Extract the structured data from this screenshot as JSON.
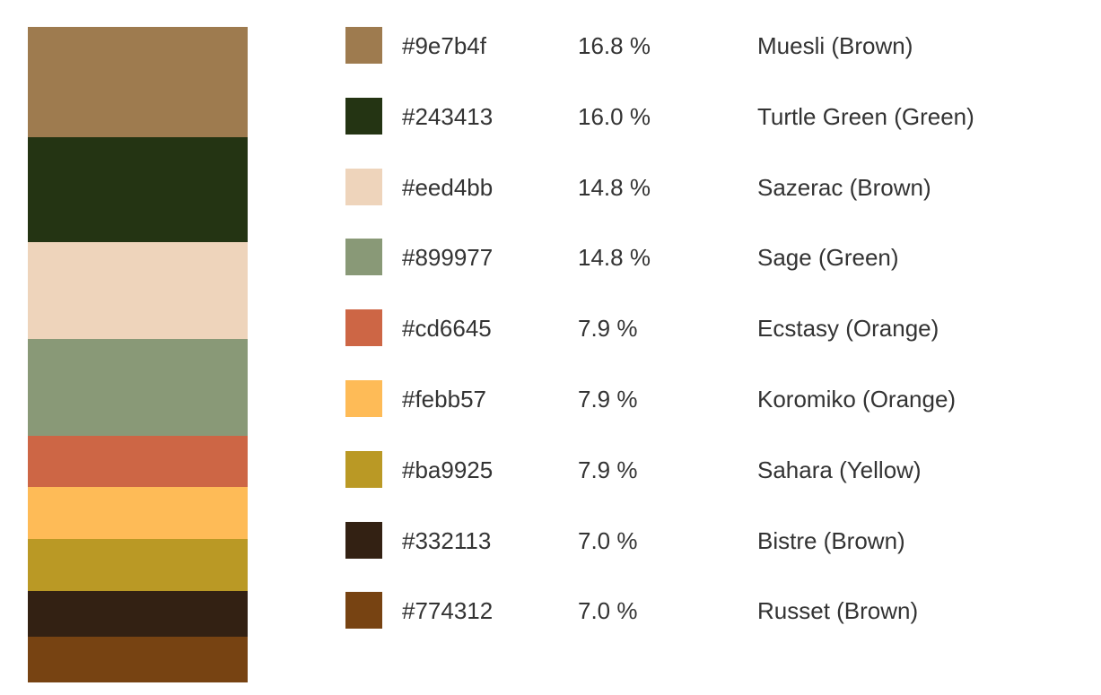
{
  "chart_data": {
    "type": "bar",
    "stacked": true,
    "orientation": "vertical",
    "entries": [
      {
        "hex": "#9e7b4f",
        "percent_label": "16.8 %",
        "value": 16.8,
        "name": "Muesli (Brown)",
        "color": "#9e7b4f"
      },
      {
        "hex": "#243413",
        "percent_label": "16.0 %",
        "value": 16.0,
        "name": "Turtle Green (Green)",
        "color": "#243413"
      },
      {
        "hex": "#eed4bb",
        "percent_label": "14.8 %",
        "value": 14.8,
        "name": "Sazerac (Brown)",
        "color": "#eed4bb"
      },
      {
        "hex": "#899977",
        "percent_label": "14.8 %",
        "value": 14.8,
        "name": "Sage (Green)",
        "color": "#899977"
      },
      {
        "hex": "#cd6645",
        "percent_label": "7.9 %",
        "value": 7.9,
        "name": "Ecstasy (Orange)",
        "color": "#cd6645"
      },
      {
        "hex": "#febb57",
        "percent_label": "7.9 %",
        "value": 7.9,
        "name": "Koromiko (Orange)",
        "color": "#febb57"
      },
      {
        "hex": "#ba9925",
        "percent_label": "7.9 %",
        "value": 7.9,
        "name": "Sahara (Yellow)",
        "color": "#ba9925"
      },
      {
        "hex": "#332113",
        "percent_label": "7.0 %",
        "value": 7.0,
        "name": "Bistre (Brown)",
        "color": "#332113"
      },
      {
        "hex": "#774312",
        "percent_label": "7.0 %",
        "value": 7.0,
        "name": "Russet (Brown)",
        "color": "#774312"
      }
    ]
  }
}
